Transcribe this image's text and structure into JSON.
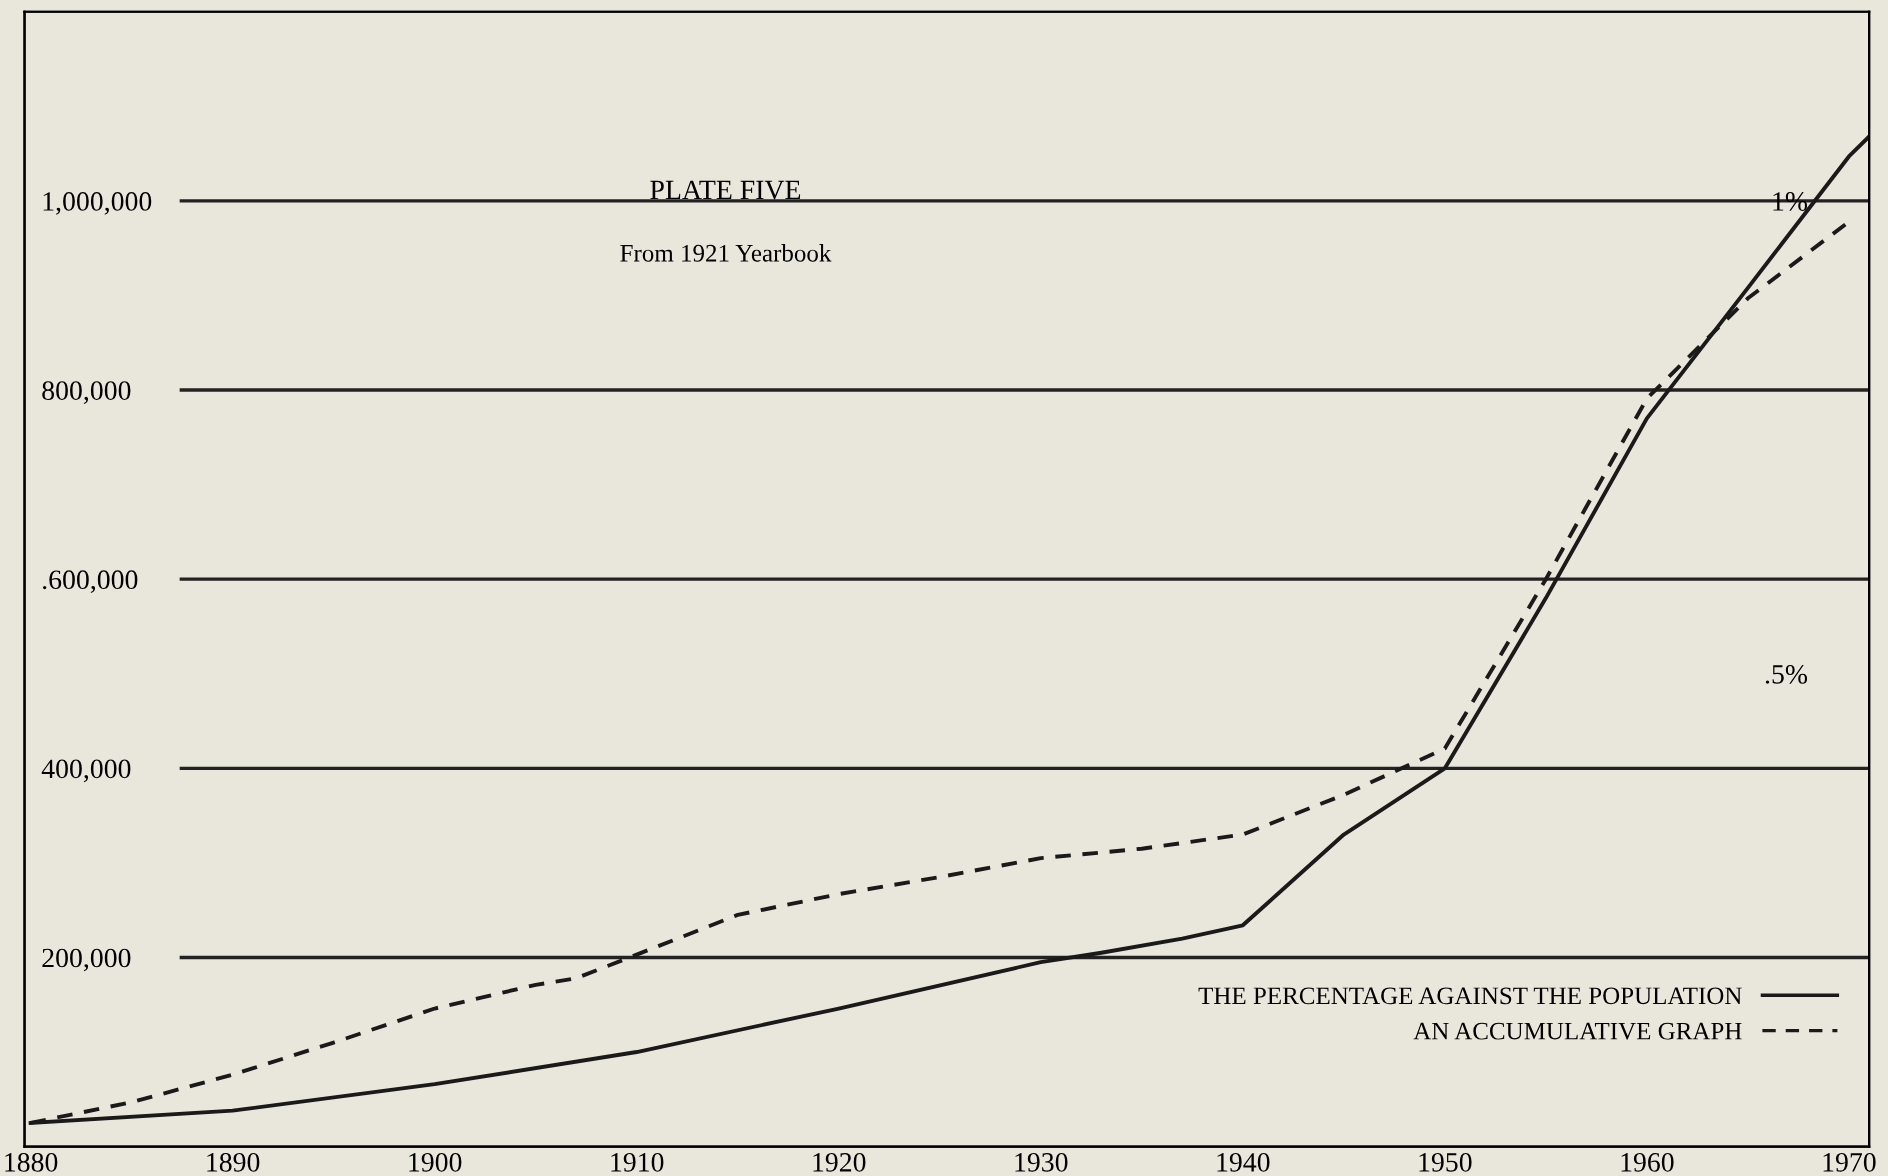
{
  "chart_data": {
    "type": "line",
    "title": "PLATE FIVE",
    "subtitle": "From 1921 Yearbook",
    "xlim": [
      1879.7,
      1971
    ],
    "xticks": [
      1880,
      1890,
      1900,
      1910,
      1920,
      1930,
      1940,
      1950,
      1960,
      1970
    ],
    "ylim": [
      0,
      1200000
    ],
    "yticks": [
      {
        "value": 200000,
        "label": "200,000"
      },
      {
        "value": 400000,
        "label": "400,000"
      },
      {
        "value": 600000,
        "label": ".600,000"
      },
      {
        "value": 800000,
        "label": "800,000"
      },
      {
        "value": 1000000,
        "label": "1,000,000"
      }
    ],
    "y2lim": [
      0,
      1.2
    ],
    "y2ticks": [
      {
        "value": 0.5,
        "label": ".5%"
      },
      {
        "value": 1,
        "label": "1%"
      }
    ],
    "grid": "y",
    "legend": "bottom right",
    "marker": "none",
    "series": [
      {
        "name": "THE PERCENTAGE AGAINST THE POPULATION",
        "color": "#1a1a1a",
        "line_style": "solid",
        "x": [
          1880,
          1890,
          1900,
          1910,
          1920,
          1930,
          1933,
          1937,
          1940,
          1945,
          1950,
          1955,
          1960,
          1965,
          1970,
          1971
        ],
        "values": [
          25000,
          38000,
          66000,
          100000,
          146000,
          195000,
          205000,
          220000,
          234000,
          330000,
          400000,
          580000,
          770000,
          908000,
          1047000,
          1068000
        ]
      },
      {
        "name": "AN ACCUMULATIVE GRAPH",
        "color": "#1a1a1a",
        "line_style": "dashed",
        "x": [
          1880,
          1885,
          1890,
          1895,
          1900,
          1905,
          1907,
          1910,
          1915,
          1920,
          1925,
          1930,
          1935,
          1940,
          1945,
          1950,
          1955,
          1960,
          1965,
          1970
        ],
        "values": [
          25000,
          47000,
          76000,
          110000,
          146000,
          171000,
          178000,
          203000,
          245000,
          267000,
          285000,
          305000,
          315000,
          330000,
          372000,
          421000,
          600000,
          791000,
          897000,
          978000
        ]
      }
    ]
  }
}
